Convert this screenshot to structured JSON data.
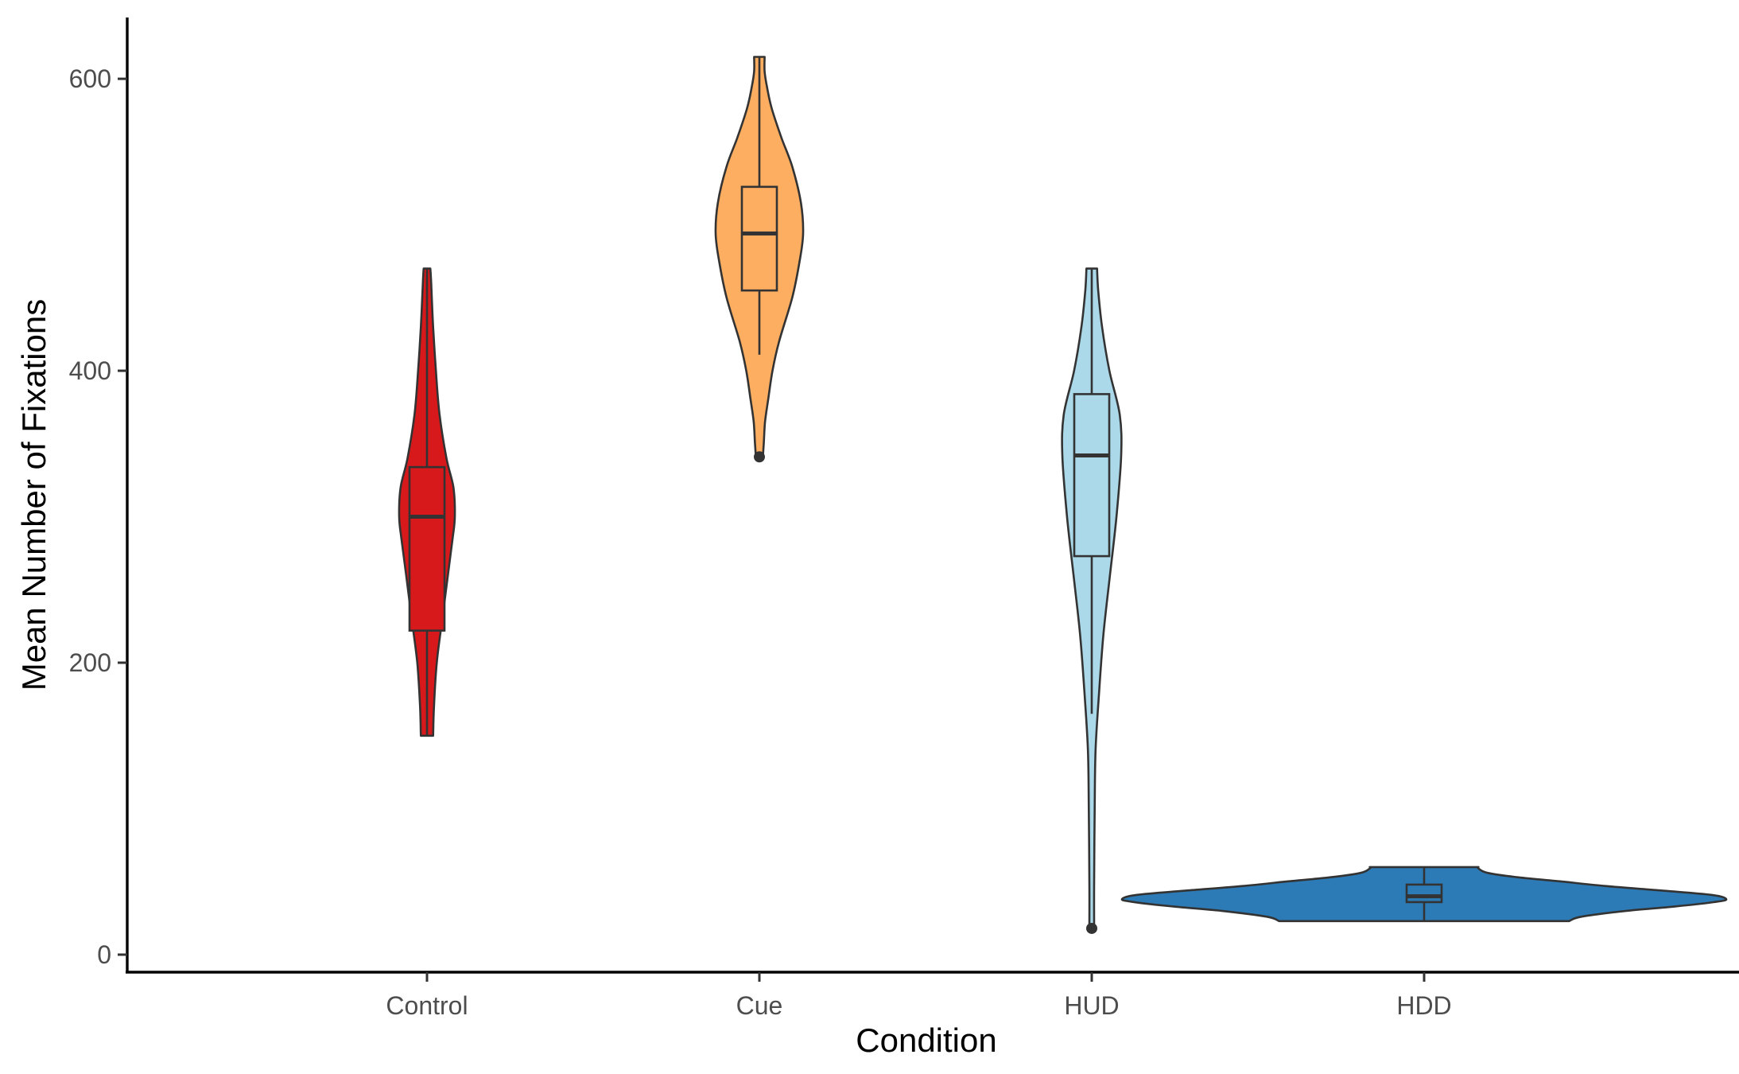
{
  "chart_data": {
    "type": "violin",
    "title": "",
    "xlabel": "Condition",
    "ylabel": "Mean Number of Fixations",
    "categories": [
      "Control",
      "Cue",
      "HUD",
      "HDD"
    ],
    "ylim": [
      -12,
      642
    ],
    "yticks": [
      0,
      200,
      400,
      600
    ],
    "grid": false,
    "legend": "none",
    "series": [
      {
        "category": "Control",
        "color": "#d7191c",
        "box": {
          "min": 150,
          "q1": 222,
          "median": 300,
          "q3": 334,
          "max": 470
        },
        "outliers": [],
        "density": [
          [
            150,
            0.22
          ],
          [
            170,
            0.25
          ],
          [
            200,
            0.35
          ],
          [
            230,
            0.55
          ],
          [
            260,
            0.75
          ],
          [
            285,
            0.92
          ],
          [
            300,
            1.0
          ],
          [
            320,
            0.95
          ],
          [
            340,
            0.7
          ],
          [
            370,
            0.45
          ],
          [
            400,
            0.32
          ],
          [
            430,
            0.22
          ],
          [
            460,
            0.15
          ],
          [
            470,
            0.12
          ]
        ]
      },
      {
        "category": "Cue",
        "color": "#fdae61",
        "box": {
          "min": 411,
          "q1": 455,
          "median": 494,
          "q3": 526,
          "max": 615
        },
        "outliers": [
          341
        ],
        "density": [
          [
            341,
            0.08
          ],
          [
            350,
            0.1
          ],
          [
            365,
            0.13
          ],
          [
            380,
            0.2
          ],
          [
            400,
            0.3
          ],
          [
            420,
            0.45
          ],
          [
            450,
            0.75
          ],
          [
            475,
            0.92
          ],
          [
            494,
            1.0
          ],
          [
            515,
            0.95
          ],
          [
            540,
            0.75
          ],
          [
            560,
            0.5
          ],
          [
            580,
            0.28
          ],
          [
            595,
            0.17
          ],
          [
            605,
            0.12
          ],
          [
            615,
            0.12
          ]
        ]
      },
      {
        "category": "HUD",
        "color": "#abd9e9",
        "box": {
          "min": 165,
          "q1": 273,
          "median": 342,
          "q3": 384,
          "max": 470
        },
        "outliers": [
          18
        ],
        "density": [
          [
            18,
            0.08
          ],
          [
            50,
            0.08
          ],
          [
            100,
            0.1
          ],
          [
            140,
            0.13
          ],
          [
            180,
            0.25
          ],
          [
            220,
            0.4
          ],
          [
            260,
            0.62
          ],
          [
            300,
            0.84
          ],
          [
            342,
            1.0
          ],
          [
            370,
            0.95
          ],
          [
            400,
            0.6
          ],
          [
            430,
            0.35
          ],
          [
            455,
            0.22
          ],
          [
            470,
            0.18
          ]
        ]
      },
      {
        "category": "HDD",
        "color": "#2c7bb6",
        "box": {
          "min": 23,
          "q1": 36,
          "median": 40,
          "q3": 48,
          "max": 60
        },
        "outliers": [],
        "density": [
          [
            23,
            0.48
          ],
          [
            26,
            0.52
          ],
          [
            30,
            0.67
          ],
          [
            33,
            0.83
          ],
          [
            36,
            0.96
          ],
          [
            38,
            1.0
          ],
          [
            41,
            0.95
          ],
          [
            44,
            0.78
          ],
          [
            47,
            0.6
          ],
          [
            50,
            0.46
          ],
          [
            53,
            0.31
          ],
          [
            56,
            0.21
          ],
          [
            59,
            0.18
          ],
          [
            60,
            0.18
          ]
        ]
      }
    ]
  }
}
